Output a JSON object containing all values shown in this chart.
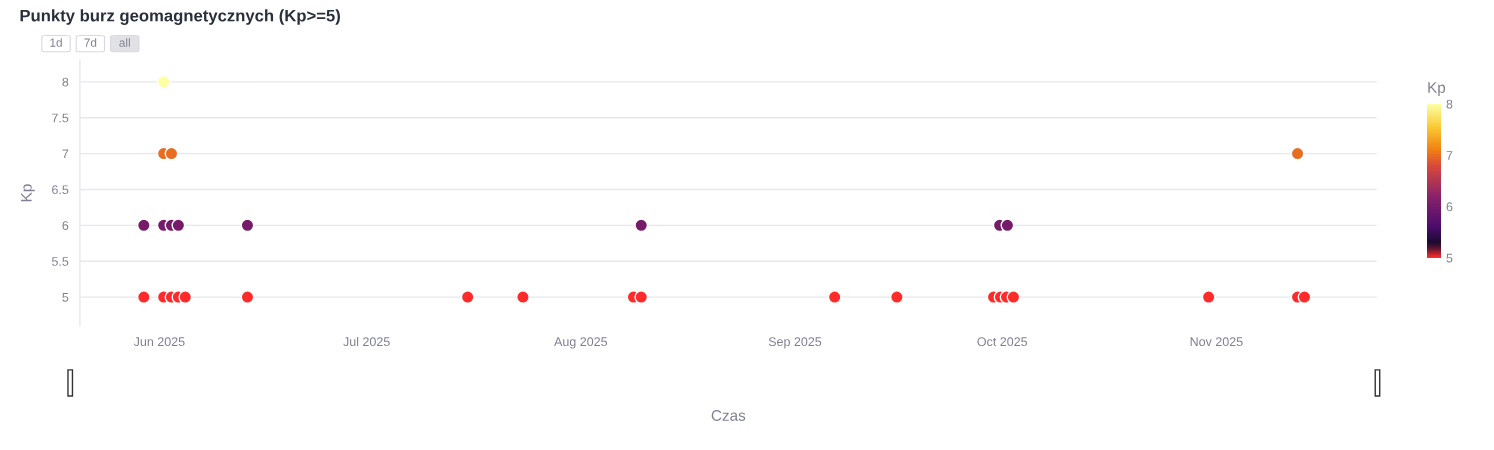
{
  "chart_data": {
    "type": "scatter",
    "title": "Punkty burz geomagnetycznych (Kp>=5)",
    "xlabel": "Czas",
    "ylabel": "Kp",
    "clabel": "Kp",
    "annotations": [
      "1d",
      "7d",
      "all"
    ],
    "series": [
      {
        "x": [
          "2025-05-29T18:00",
          "2025-05-29T18:00",
          "2025-06-01T15:00",
          "2025-06-01T15:00",
          "2025-06-01T15:00",
          "2025-06-01T15:00",
          "2025-06-02T18:00",
          "2025-06-02T18:00",
          "2025-06-02T18:00",
          "2025-06-03T18:00",
          "2025-06-03T18:00",
          "2025-06-04T18:00",
          "2025-06-13T18:00",
          "2025-06-13T18:00",
          "2025-07-15T15:00",
          "2025-07-23T15:00",
          "2025-08-08T15:00",
          "2025-08-09T18:00",
          "2025-08-09T18:00",
          "2025-09-06T18:00",
          "2025-09-15T18:00",
          "2025-09-29T18:00",
          "2025-09-30T18:00",
          "2025-09-30T15:00",
          "2025-10-01T15:00",
          "2025-10-01T18:00",
          "2025-10-02T15:00",
          "2025-10-30T21:00",
          "2025-11-12T18:00",
          "2025-11-12T18:00",
          "2025-11-13T18:00"
        ],
        "values": [
          6,
          5,
          8,
          7,
          6,
          5,
          7,
          6,
          5,
          6,
          5,
          5,
          6,
          5,
          5,
          5,
          5,
          6,
          5,
          5,
          5,
          5,
          5,
          6,
          5,
          6,
          5,
          5,
          7,
          5,
          5
        ],
        "cvalues": [
          6,
          5,
          8,
          7,
          6,
          5,
          7,
          6,
          5,
          6,
          5,
          5,
          6,
          5,
          5,
          5,
          5,
          6,
          5,
          5,
          5,
          5,
          5,
          6,
          5,
          6,
          5,
          5,
          7,
          5,
          5
        ]
      }
    ],
    "xlim": [
      "2025-05-20T12:00",
      "2025-11-24T05:00"
    ],
    "xticks": [
      {
        "value": "2025-06-01",
        "label": "Jun 2025"
      },
      {
        "value": "2025-07-01",
        "label": "Jul 2025"
      },
      {
        "value": "2025-08-01",
        "label": "Aug 2025"
      },
      {
        "value": "2025-09-01",
        "label": "Sep 2025"
      },
      {
        "value": "2025-10-01",
        "label": "Oct 2025"
      },
      {
        "value": "2025-11-01",
        "label": "Nov 2025"
      }
    ],
    "ylim": [
      4.6,
      8.3
    ],
    "yticks": [
      5,
      5.5,
      6,
      6.5,
      7,
      7.5,
      8
    ],
    "clim": [
      5,
      8
    ],
    "cticks": [
      5,
      6,
      7,
      8
    ],
    "grid": "y",
    "marker": "circle",
    "legend": false
  }
}
